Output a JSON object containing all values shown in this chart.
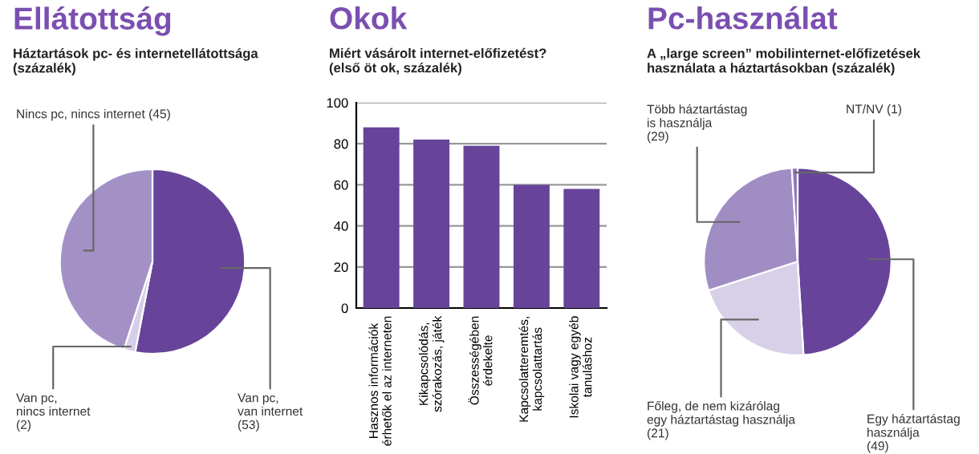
{
  "chart_data": [
    {
      "type": "pie",
      "title": "Ellátottság",
      "subtitle": "Háztartások pc- és internetellátottsága\n(százalék)",
      "categories": [
        "Van pc,\nvan internet",
        "Van pc,\nnincs internet",
        "Nincs pc, nincs internet"
      ],
      "values": [
        53,
        2,
        45
      ],
      "value_labels": [
        "(53)",
        "(2)",
        "(45)"
      ],
      "colors": [
        "#67449a",
        "#d6cde8",
        "#a391c6"
      ]
    },
    {
      "type": "bar",
      "title": "Okok",
      "subtitle": "Miért vásárolt internet-előfizetést?\n(első öt ok, százalék)",
      "categories": [
        "Hasznos információk\nérhetők el az interneten",
        "Kikapcsolódás,\nszórakozás, játék",
        "Összességében\nérdekelte",
        "Kapcsolatteremtés,\nkapcsolattartás",
        "Iskolai vagy egyéb\ntanuláshoz"
      ],
      "values": [
        88,
        82,
        79,
        60,
        58
      ],
      "color": "#67449a",
      "ylim": [
        0,
        100
      ],
      "yticks": [
        0,
        20,
        40,
        60,
        80,
        100
      ],
      "grid": "y"
    },
    {
      "type": "pie",
      "title": "Pc-használat",
      "subtitle": "A „large screen” mobilinternet-előfizetések\nhasználata a háztartásokban (százalék)",
      "categories": [
        "Egy háztartástag\nhasználja",
        "Főleg, de nem kizárólag\negy háztartástag használja",
        "Több háztartástag\nis használja",
        "NT/NV"
      ],
      "values": [
        49,
        21,
        29,
        1
      ],
      "value_labels": [
        "(49)",
        "(21)",
        "(29)",
        "(1)"
      ],
      "colors": [
        "#67449a",
        "#d8d0e8",
        "#a08dc4",
        "#8e78b8"
      ]
    }
  ]
}
